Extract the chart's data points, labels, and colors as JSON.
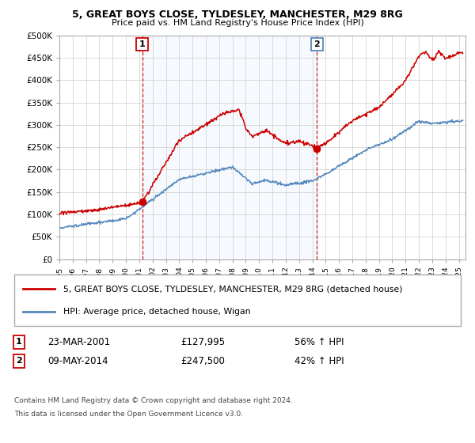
{
  "title1": "5, GREAT BOYS CLOSE, TYLDESLEY, MANCHESTER, M29 8RG",
  "title2": "Price paid vs. HM Land Registry's House Price Index (HPI)",
  "legend_line1": "5, GREAT BOYS CLOSE, TYLDESLEY, MANCHESTER, M29 8RG (detached house)",
  "legend_line2": "HPI: Average price, detached house, Wigan",
  "annotation1_date": "23-MAR-2001",
  "annotation1_price": "£127,995",
  "annotation1_hpi": "56% ↑ HPI",
  "annotation2_date": "09-MAY-2014",
  "annotation2_price": "£247,500",
  "annotation2_hpi": "42% ↑ HPI",
  "footnote1": "Contains HM Land Registry data © Crown copyright and database right 2024.",
  "footnote2": "This data is licensed under the Open Government Licence v3.0.",
  "sale1_x": 2001.22,
  "sale1_y": 127995,
  "sale2_x": 2014.35,
  "sale2_y": 247500,
  "red_color": "#cc0000",
  "blue_color": "#5588bb",
  "shade_color": "#ddeeff",
  "vline_color": "#cc0000",
  "grid_color": "#cccccc",
  "background_color": "#ffffff",
  "ylim": [
    0,
    500000
  ],
  "xlim_left": 1995.0,
  "xlim_right": 2025.5
}
